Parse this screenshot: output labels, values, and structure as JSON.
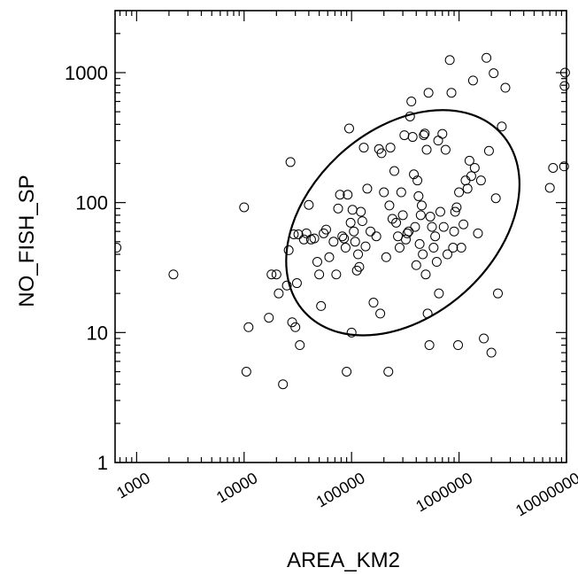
{
  "chart_data": {
    "type": "scatter",
    "xlabel": "AREA_KM2",
    "ylabel": "NO_FISH_SP",
    "xscale": "log",
    "yscale": "log",
    "xlim": [
      630,
      10000000
    ],
    "ylim": [
      1,
      3000
    ],
    "x_ticks": [
      1000,
      10000,
      100000,
      1000000,
      10000000
    ],
    "x_tick_labels": [
      "1000",
      "10000",
      "100000",
      "1000000",
      "10000000"
    ],
    "y_ticks": [
      1,
      10,
      100,
      1000
    ],
    "y_tick_labels": [
      "1",
      "10",
      "100",
      "1000"
    ],
    "grid": false,
    "marker": "open-circle",
    "ellipse": {
      "center": [
        300000,
        70
      ],
      "note": "confidence ellipse around the point cloud"
    },
    "points": [
      [
        650,
        45
      ],
      [
        2200,
        28
      ],
      [
        10000,
        92
      ],
      [
        10500,
        5
      ],
      [
        11000,
        11
      ],
      [
        17000,
        13
      ],
      [
        18000,
        28
      ],
      [
        20000,
        28
      ],
      [
        21000,
        20
      ],
      [
        23000,
        4
      ],
      [
        25000,
        23
      ],
      [
        26000,
        43
      ],
      [
        27000,
        205
      ],
      [
        28000,
        12
      ],
      [
        29000,
        57
      ],
      [
        30000,
        11
      ],
      [
        31000,
        24
      ],
      [
        32000,
        57
      ],
      [
        33000,
        8
      ],
      [
        36000,
        52
      ],
      [
        38000,
        58
      ],
      [
        40000,
        96
      ],
      [
        42000,
        52
      ],
      [
        45000,
        53
      ],
      [
        48000,
        35
      ],
      [
        50000,
        28
      ],
      [
        52000,
        16
      ],
      [
        55000,
        58
      ],
      [
        58000,
        62
      ],
      [
        62000,
        38
      ],
      [
        68000,
        50
      ],
      [
        72000,
        28
      ],
      [
        75000,
        90
      ],
      [
        78000,
        115
      ],
      [
        82000,
        55
      ],
      [
        85000,
        53
      ],
      [
        88000,
        45
      ],
      [
        90000,
        5
      ],
      [
        92000,
        115
      ],
      [
        95000,
        372
      ],
      [
        98000,
        70
      ],
      [
        100000,
        10
      ],
      [
        102000,
        88
      ],
      [
        105000,
        60
      ],
      [
        108000,
        50
      ],
      [
        112000,
        30
      ],
      [
        115000,
        40
      ],
      [
        118000,
        32
      ],
      [
        122000,
        85
      ],
      [
        126000,
        72
      ],
      [
        130000,
        265
      ],
      [
        135000,
        46
      ],
      [
        140000,
        128
      ],
      [
        150000,
        60
      ],
      [
        160000,
        17
      ],
      [
        170000,
        55
      ],
      [
        180000,
        258
      ],
      [
        185000,
        14
      ],
      [
        190000,
        240
      ],
      [
        200000,
        120
      ],
      [
        210000,
        38
      ],
      [
        220000,
        5
      ],
      [
        225000,
        95
      ],
      [
        230000,
        265
      ],
      [
        240000,
        75
      ],
      [
        250000,
        175
      ],
      [
        260000,
        70
      ],
      [
        270000,
        55
      ],
      [
        280000,
        45
      ],
      [
        290000,
        120
      ],
      [
        300000,
        80
      ],
      [
        310000,
        330
      ],
      [
        320000,
        52
      ],
      [
        330000,
        58
      ],
      [
        340000,
        60
      ],
      [
        350000,
        460
      ],
      [
        360000,
        600
      ],
      [
        370000,
        320
      ],
      [
        380000,
        165
      ],
      [
        390000,
        65
      ],
      [
        400000,
        33
      ],
      [
        410000,
        148
      ],
      [
        420000,
        112
      ],
      [
        430000,
        48
      ],
      [
        440000,
        80
      ],
      [
        450000,
        95
      ],
      [
        460000,
        40
      ],
      [
        470000,
        330
      ],
      [
        480000,
        340
      ],
      [
        490000,
        28
      ],
      [
        500000,
        255
      ],
      [
        510000,
        14
      ],
      [
        520000,
        700
      ],
      [
        530000,
        8
      ],
      [
        540000,
        78
      ],
      [
        560000,
        65
      ],
      [
        580000,
        45
      ],
      [
        600000,
        55
      ],
      [
        620000,
        35
      ],
      [
        640000,
        300
      ],
      [
        650000,
        20
      ],
      [
        670000,
        85
      ],
      [
        700000,
        338
      ],
      [
        720000,
        65
      ],
      [
        750000,
        255
      ],
      [
        780000,
        40
      ],
      [
        820000,
        1250
      ],
      [
        850000,
        700
      ],
      [
        880000,
        45
      ],
      [
        900000,
        60
      ],
      [
        920000,
        85
      ],
      [
        950000,
        92
      ],
      [
        980000,
        8
      ],
      [
        1000000,
        120
      ],
      [
        1050000,
        45
      ],
      [
        1100000,
        68
      ],
      [
        1150000,
        148
      ],
      [
        1200000,
        128
      ],
      [
        1250000,
        210
      ],
      [
        1300000,
        160
      ],
      [
        1350000,
        870
      ],
      [
        1400000,
        185
      ],
      [
        1500000,
        58
      ],
      [
        1600000,
        148
      ],
      [
        1700000,
        9
      ],
      [
        1800000,
        1300
      ],
      [
        1900000,
        250
      ],
      [
        2000000,
        7
      ],
      [
        2100000,
        990
      ],
      [
        2200000,
        108
      ],
      [
        2300000,
        20
      ],
      [
        2500000,
        385
      ],
      [
        2700000,
        765
      ],
      [
        7000000,
        130
      ],
      [
        7500000,
        185
      ],
      [
        9500000,
        190
      ],
      [
        9600000,
        790
      ],
      [
        9700000,
        1000
      ]
    ]
  }
}
